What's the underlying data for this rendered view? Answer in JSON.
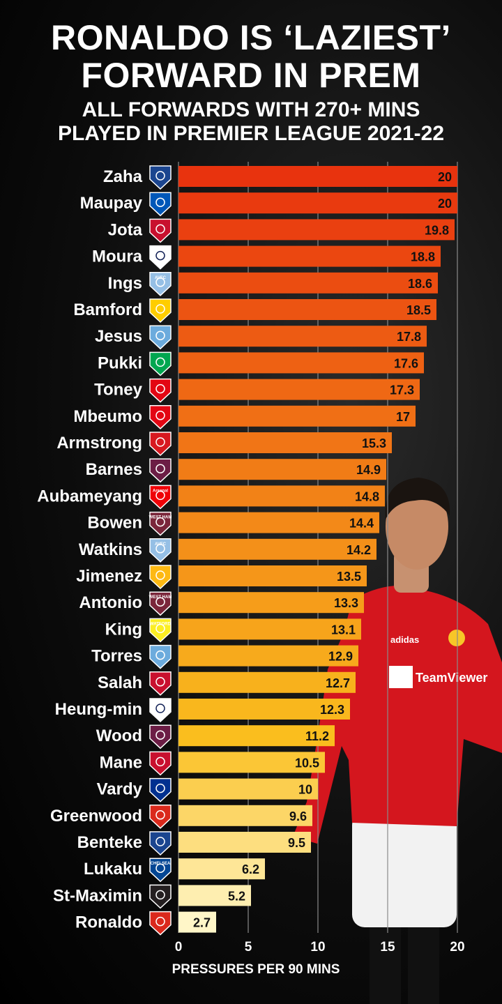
{
  "header": {
    "title_line1": "RONALDO IS ‘LAZIEST’",
    "title_line2": "FORWARD IN PREM",
    "subtitle_line1": "ALL FORWARDS WITH 270+ MINS",
    "subtitle_line2": "PLAYED IN PREMIER LEAGUE 2021-22"
  },
  "player_shirt": {
    "sponsor": "TeamViewer",
    "kit_brand": "adidas"
  },
  "chart_data": {
    "type": "bar",
    "orientation": "horizontal",
    "categories": [
      "Zaha",
      "Maupay",
      "Jota",
      "Moura",
      "Ings",
      "Bamford",
      "Jesus",
      "Pukki",
      "Toney",
      "Mbeumo",
      "Armstrong",
      "Barnes",
      "Aubameyang",
      "Bowen",
      "Watkins",
      "Jimenez",
      "Antonio",
      "King",
      "Torres",
      "Salah",
      "Heung-min",
      "Wood",
      "Mane",
      "Vardy",
      "Greenwood",
      "Benteke",
      "Lukaku",
      "St-Maximin",
      "Ronaldo"
    ],
    "values": [
      20,
      20,
      19.8,
      18.8,
      18.6,
      18.5,
      17.8,
      17.6,
      17.3,
      17,
      15.3,
      14.9,
      14.8,
      14.4,
      14.2,
      13.5,
      13.3,
      13.1,
      12.9,
      12.7,
      12.3,
      11.2,
      10.5,
      10,
      9.6,
      9.5,
      6.2,
      5.2,
      2.7
    ],
    "value_labels": [
      "20",
      "20",
      "19.8",
      "18.8",
      "18.6",
      "18.5",
      "17.8",
      "17.6",
      "17.3",
      "17",
      "15.3",
      "14.9",
      "14.8",
      "14.4",
      "14.2",
      "13.5",
      "13.3",
      "13.1",
      "12.9",
      "12.7",
      "12.3",
      "11.2",
      "10.5",
      "10",
      "9.6",
      "9.5",
      "6.2",
      "5.2",
      "2.7"
    ],
    "clubs": [
      "Crystal Palace",
      "Brighton",
      "Liverpool",
      "Tottenham",
      "Aston Villa",
      "Leeds",
      "Man City",
      "Norwich",
      "Brentford",
      "Brentford",
      "Southampton",
      "Burnley",
      "Arsenal",
      "West Ham",
      "Aston Villa",
      "Wolves",
      "West Ham",
      "Watford",
      "Man City",
      "Liverpool",
      "Tottenham",
      "Burnley",
      "Liverpool",
      "Leicester",
      "Man Utd",
      "Crystal Palace",
      "Chelsea",
      "Newcastle",
      "Man Utd"
    ],
    "club_colors": [
      "#1b458f",
      "#0057b8",
      "#c8102e",
      "#ffffff",
      "#95bfe5",
      "#ffcd00",
      "#6cabdd",
      "#00a650",
      "#e30613",
      "#e30613",
      "#d71920",
      "#6c1d45",
      "#ef0107",
      "#7a263a",
      "#95bfe5",
      "#fdb913",
      "#7a263a",
      "#fbee23",
      "#6cabdd",
      "#c8102e",
      "#ffffff",
      "#6c1d45",
      "#c8102e",
      "#003090",
      "#da291c",
      "#1b458f",
      "#034694",
      "#241f20",
      "#da291c"
    ],
    "club_badge_text": [
      "",
      "",
      "",
      "",
      "AVFC",
      "",
      "",
      "",
      "",
      "",
      "",
      "",
      "Arsenal",
      "WEST HAM",
      "AVFC",
      "",
      "WEST HAM",
      "WATFORD",
      "",
      "",
      "",
      "",
      "",
      "",
      "",
      "",
      "CHELSEA",
      "",
      ""
    ],
    "x_ticks": [
      0,
      5,
      10,
      15,
      20
    ],
    "x_tick_labels": [
      "0",
      "5",
      "10",
      "15",
      "20"
    ],
    "xlabel": "PRESSURES PER 90 MINS",
    "xlim": [
      0,
      20
    ],
    "grid": true,
    "bar_gradient": {
      "top": "#e8330e",
      "bottom": "#fff6c8"
    }
  }
}
